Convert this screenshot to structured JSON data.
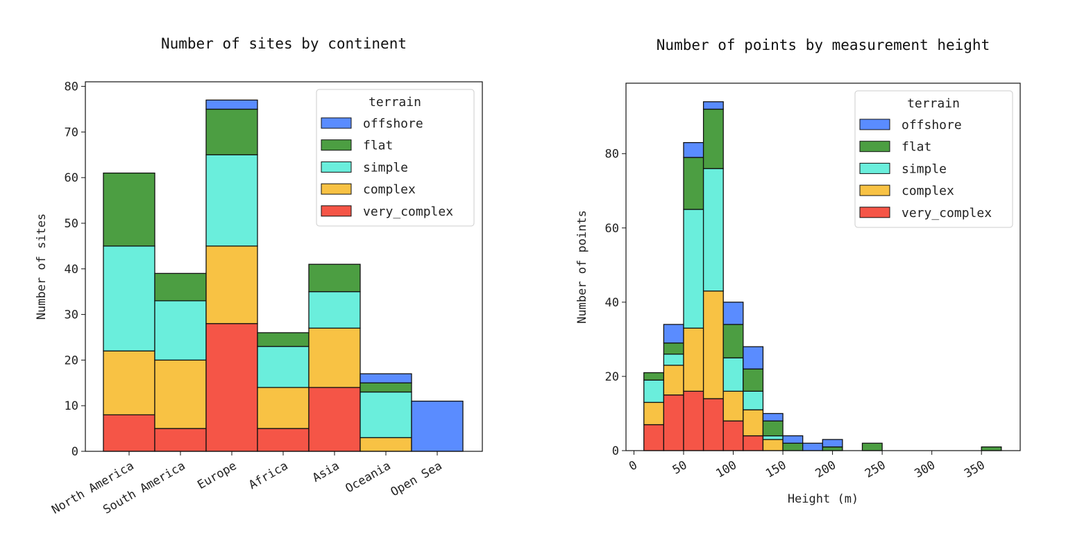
{
  "colors": {
    "offshore": "#5a8cff",
    "flat": "#4c9e42",
    "simple": "#6aeedc",
    "complex": "#f8c244",
    "very_complex": "#f55547"
  },
  "chart_data": [
    {
      "type": "bar",
      "stacked": true,
      "title": "Number of sites by continent",
      "xlabel": "",
      "ylabel": "Number of sites",
      "ylim": [
        0,
        81
      ],
      "yticks": [
        0,
        10,
        20,
        30,
        40,
        50,
        60,
        70,
        80
      ],
      "categories": [
        "North America",
        "South America",
        "Europe",
        "Africa",
        "Asia",
        "Oceania",
        "Open Sea"
      ],
      "legend": {
        "title": "terrain",
        "placement": "top-right"
      },
      "series": [
        {
          "name": "very_complex",
          "values": [
            8,
            5,
            28,
            5,
            14,
            0,
            0
          ]
        },
        {
          "name": "complex",
          "values": [
            14,
            15,
            17,
            9,
            13,
            3,
            0
          ]
        },
        {
          "name": "simple",
          "values": [
            23,
            13,
            20,
            9,
            8,
            10,
            0
          ]
        },
        {
          "name": "flat",
          "values": [
            16,
            6,
            10,
            3,
            6,
            2,
            0
          ]
        },
        {
          "name": "offshore",
          "values": [
            0,
            0,
            2,
            0,
            0,
            2,
            11
          ]
        }
      ]
    },
    {
      "type": "bar",
      "stacked": true,
      "histogram": true,
      "title": "Number of points by measurement height",
      "xlabel": "Height (m)",
      "ylabel": "Number of points",
      "xlim": [
        -8,
        389
      ],
      "ylim": [
        0,
        99
      ],
      "xticks": [
        0,
        50,
        100,
        150,
        200,
        250,
        300,
        350
      ],
      "yticks": [
        0,
        20,
        40,
        60,
        80
      ],
      "bin_edges": [
        10,
        30,
        50,
        70,
        90,
        110,
        130,
        150,
        170,
        190,
        210,
        230,
        250,
        270,
        290,
        310,
        330,
        350,
        370
      ],
      "legend": {
        "title": "terrain",
        "placement": "top-right"
      },
      "series": [
        {
          "name": "very_complex",
          "values": [
            7,
            15,
            16,
            14,
            8,
            4,
            0,
            0,
            0,
            0,
            0,
            0,
            0,
            0,
            0,
            0,
            0,
            0
          ]
        },
        {
          "name": "complex",
          "values": [
            6,
            8,
            17,
            29,
            8,
            7,
            3,
            0,
            0,
            0,
            0,
            0,
            0,
            0,
            0,
            0,
            0,
            0
          ]
        },
        {
          "name": "simple",
          "values": [
            6,
            3,
            32,
            33,
            9,
            5,
            1,
            0,
            0,
            0,
            0,
            0,
            0,
            0,
            0,
            0,
            0,
            0
          ]
        },
        {
          "name": "flat",
          "values": [
            2,
            3,
            14,
            16,
            9,
            6,
            4,
            2,
            0,
            1,
            0,
            2,
            0,
            0,
            0,
            0,
            0,
            1
          ]
        },
        {
          "name": "offshore",
          "values": [
            0,
            5,
            4,
            2,
            6,
            6,
            2,
            2,
            2,
            2,
            0,
            0,
            0,
            0,
            0,
            0,
            0,
            0
          ]
        }
      ]
    }
  ]
}
